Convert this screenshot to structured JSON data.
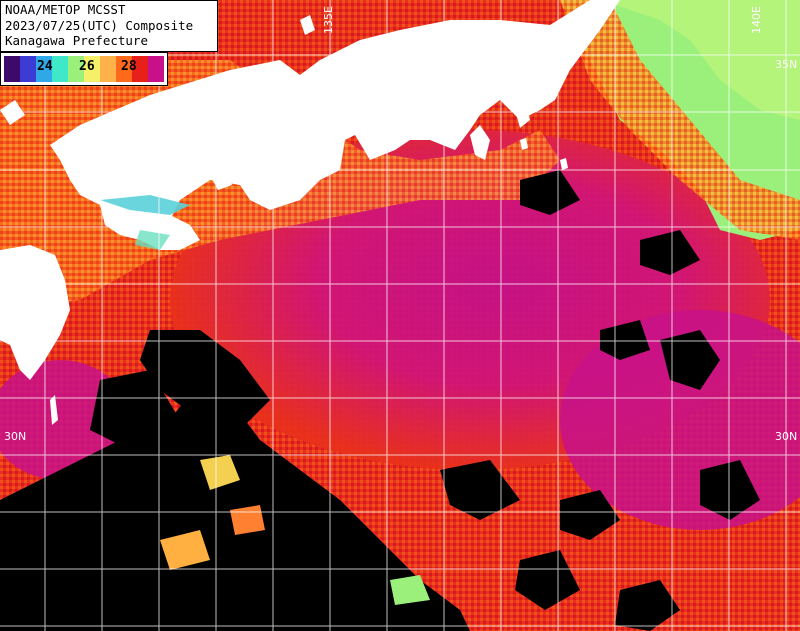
{
  "header": {
    "line1": "NOAA/METOP MCSST",
    "line2": "2023/07/25(UTC) Composite",
    "line3": "Kanagawa Prefecture"
  },
  "legend": {
    "ticks": [
      "24",
      "26",
      "28"
    ],
    "colors": [
      "#3d0a6b",
      "#3c3cd4",
      "#2fa8e8",
      "#3fe8c8",
      "#9af07a",
      "#f4f06a",
      "#ffb24a",
      "#ff6a1a",
      "#e8201a",
      "#c8108a"
    ]
  },
  "grid_labels": {
    "lat_left": "30N",
    "lat_right": "30N",
    "lat_right_top": "35N",
    "lon_top_a": "135E",
    "lon_top_b": "140E"
  },
  "colors": {
    "land": "#ffffff",
    "no_data": "#000000",
    "sst_high": "#c4108a",
    "sst_mid": "#f03418",
    "sst_low": "#9af07a"
  }
}
